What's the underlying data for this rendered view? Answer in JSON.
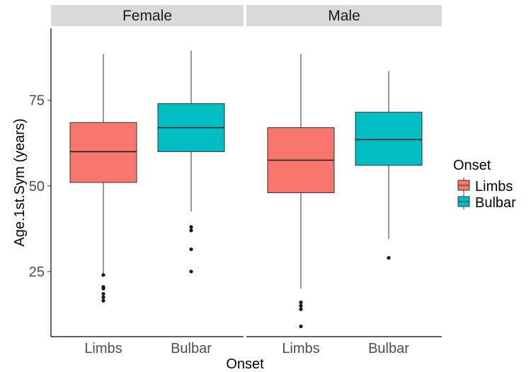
{
  "chart_data": {
    "type": "boxplot",
    "facets": [
      "Female",
      "Male"
    ],
    "categories": [
      "Limbs",
      "Bulbar"
    ],
    "xlabel": "Onset",
    "ylabel": "Age.1st.Sym (years)",
    "y_ticks": [
      25,
      50,
      75
    ],
    "ylim": [
      6,
      96
    ],
    "grid": false,
    "legend": {
      "title": "Onset",
      "position": "right",
      "items": [
        {
          "label": "Limbs",
          "color": "#F8766D"
        },
        {
          "label": "Bulbar",
          "color": "#00BFC4"
        }
      ]
    },
    "boxes": [
      {
        "facet": "Female",
        "category": "Limbs",
        "color": "#F8766D",
        "whisker_low": 24.5,
        "q1": 51,
        "median": 60,
        "q3": 68.5,
        "whisker_high": 88.5,
        "outliers": [
          24,
          20.5,
          20,
          18.5,
          17.5,
          16.5
        ]
      },
      {
        "facet": "Female",
        "category": "Bulbar",
        "color": "#00BFC4",
        "whisker_low": 42.5,
        "q1": 60,
        "median": 67,
        "q3": 74,
        "whisker_high": 89.5,
        "outliers": [
          38,
          37,
          31.5,
          25
        ]
      },
      {
        "facet": "Male",
        "category": "Limbs",
        "color": "#F8766D",
        "whisker_low": 20,
        "q1": 48,
        "median": 57.5,
        "q3": 67,
        "whisker_high": 88.5,
        "outliers": [
          16,
          15,
          14,
          9
        ]
      },
      {
        "facet": "Male",
        "category": "Bulbar",
        "color": "#00BFC4",
        "whisker_low": 34.5,
        "q1": 56,
        "median": 63.5,
        "q3": 71.5,
        "whisker_high": 83.5,
        "outliers": [
          29
        ]
      }
    ]
  }
}
